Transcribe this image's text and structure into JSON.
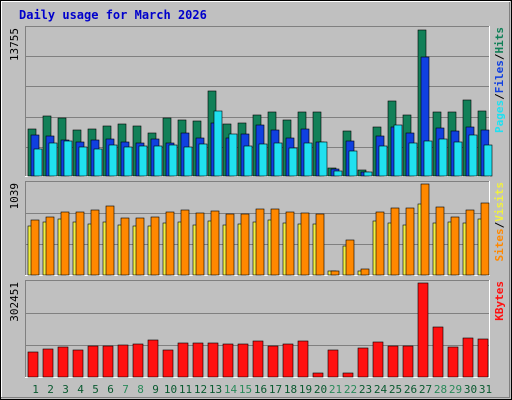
{
  "title": "Daily usage for March 2026",
  "colors": {
    "background": "#c0c0c0",
    "panel": "#c0c0c0",
    "title": "#0000cc",
    "hits": "#128058",
    "files": "#1040e0",
    "pages": "#20e0f0",
    "visits": "#f0f040",
    "sites": "#ff8800",
    "kbytes": "#ff1010",
    "weekend_label": "#2a8a5a",
    "weekday_label": "#0a5a30"
  },
  "days": [
    "1",
    "2",
    "3",
    "4",
    "5",
    "6",
    "7",
    "8",
    "9",
    "10",
    "11",
    "12",
    "13",
    "14",
    "15",
    "16",
    "17",
    "18",
    "19",
    "20",
    "21",
    "22",
    "23",
    "24",
    "25",
    "26",
    "27",
    "28",
    "29",
    "30",
    "31"
  ],
  "weekend_days": [
    7,
    8,
    14,
    15,
    21,
    22,
    28,
    29
  ],
  "chart_data": [
    {
      "type": "bar",
      "name": "hits-files-pages",
      "categories": [
        "1",
        "2",
        "3",
        "4",
        "5",
        "6",
        "7",
        "8",
        "9",
        "10",
        "11",
        "12",
        "13",
        "14",
        "15",
        "16",
        "17",
        "18",
        "19",
        "20",
        "21",
        "22",
        "23",
        "24",
        "25",
        "26",
        "27",
        "28",
        "29",
        "30",
        "31"
      ],
      "ymax_label": "13755",
      "ylim": [
        0,
        13755
      ],
      "legend_right": [
        {
          "label": "Pages",
          "color": "#20e0f0"
        },
        {
          "label": "/",
          "color": "#000000"
        },
        {
          "label": "Files",
          "color": "#1040e0"
        },
        {
          "label": "/",
          "color": "#000000"
        },
        {
          "label": "Hits",
          "color": "#128058"
        }
      ],
      "series": [
        {
          "name": "Hits",
          "values": [
            4400,
            5600,
            5400,
            4300,
            4400,
            4700,
            4900,
            4700,
            4000,
            5400,
            5200,
            5100,
            8000,
            4900,
            5000,
            5700,
            6000,
            5200,
            6000,
            6000,
            780,
            4200,
            520,
            4600,
            7000,
            5700,
            13700,
            6000,
            6000,
            7100,
            6100
          ]
        },
        {
          "name": "Files",
          "values": [
            3800,
            3700,
            3400,
            3200,
            3400,
            3500,
            3200,
            3100,
            3500,
            3100,
            4000,
            3600,
            5000,
            3600,
            3900,
            4800,
            4300,
            3600,
            4400,
            3200,
            620,
            3300,
            420,
            3700,
            4600,
            4000,
            11100,
            4500,
            4200,
            4600,
            4300
          ]
        },
        {
          "name": "Pages",
          "values": [
            2500,
            3100,
            3300,
            2700,
            2500,
            2900,
            2700,
            2800,
            2800,
            2900,
            2700,
            3000,
            6100,
            3900,
            2800,
            3000,
            3100,
            2600,
            3100,
            3200,
            500,
            2300,
            360,
            2800,
            4800,
            3100,
            3300,
            3500,
            3200,
            3800,
            2900
          ]
        }
      ]
    },
    {
      "type": "bar",
      "name": "visits-sites",
      "categories": [
        "1",
        "2",
        "3",
        "4",
        "5",
        "6",
        "7",
        "8",
        "9",
        "10",
        "11",
        "12",
        "13",
        "14",
        "15",
        "16",
        "17",
        "18",
        "19",
        "20",
        "21",
        "22",
        "23",
        "24",
        "25",
        "26",
        "27",
        "28",
        "29",
        "30",
        "31"
      ],
      "ymax_label": "1039",
      "ylim": [
        0,
        1039
      ],
      "legend_right": [
        {
          "label": "Sites",
          "color": "#ff8800"
        },
        {
          "label": "/",
          "color": "#000000"
        },
        {
          "label": "Visits",
          "color": "#f0f040"
        }
      ],
      "series": [
        {
          "name": "Visits",
          "values": [
            560,
            610,
            640,
            600,
            580,
            600,
            570,
            560,
            560,
            590,
            600,
            570,
            620,
            570,
            580,
            600,
            630,
            590,
            580,
            580,
            40,
            330,
            40,
            620,
            590,
            570,
            810,
            590,
            600,
            590,
            640
          ]
        },
        {
          "name": "Sites",
          "values": [
            630,
            660,
            720,
            720,
            740,
            790,
            650,
            650,
            660,
            720,
            740,
            710,
            730,
            700,
            700,
            750,
            750,
            720,
            710,
            700,
            50,
            400,
            70,
            720,
            770,
            760,
            1039,
            780,
            660,
            740,
            820
          ]
        }
      ]
    },
    {
      "type": "bar",
      "name": "kbytes",
      "categories": [
        "1",
        "2",
        "3",
        "4",
        "5",
        "6",
        "7",
        "8",
        "9",
        "10",
        "11",
        "12",
        "13",
        "14",
        "15",
        "16",
        "17",
        "18",
        "19",
        "20",
        "21",
        "22",
        "23",
        "24",
        "25",
        "26",
        "27",
        "28",
        "29",
        "30",
        "31"
      ],
      "ymax_label": "302451",
      "ylim": [
        0,
        302451
      ],
      "legend_right": [
        {
          "label": "KBytes",
          "color": "#ff1010"
        }
      ],
      "series": [
        {
          "name": "KBytes",
          "values": [
            82000,
            90000,
            97000,
            87000,
            100000,
            99000,
            104000,
            106000,
            120000,
            88000,
            110000,
            110000,
            108000,
            105000,
            106000,
            116000,
            101000,
            105000,
            116000,
            13000,
            87000,
            13000,
            93000,
            114000,
            101000,
            101000,
            302451,
            160000,
            98000,
            124000,
            121000
          ]
        }
      ]
    }
  ]
}
